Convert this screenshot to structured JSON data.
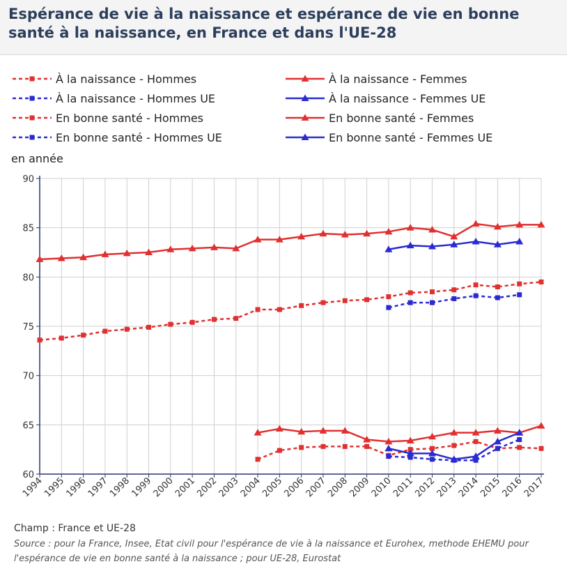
{
  "title": "Espérance de vie à la naissance et espérance de vie en bonne santé à la naissance, en France et dans l'UE-28",
  "unit_label": "en année",
  "footer": {
    "champ": "Champ : France et UE-28",
    "source": "Source : pour la France, Insee, Etat civil pour l'espérance de vie à la naissance et Eurohex, methode EHEMU pour l'espérance de vie en bonne santé à la naissance ; pour UE-28, Eurostat"
  },
  "chart_data": {
    "type": "line",
    "ylim": [
      60,
      90
    ],
    "yticks": [
      60,
      65,
      70,
      75,
      80,
      85,
      90
    ],
    "grid": true,
    "legend_position": "top",
    "x": [
      "1994",
      "1995",
      "1996",
      "1997",
      "1998",
      "1999",
      "2000",
      "2001",
      "2002",
      "2003",
      "2004",
      "2005",
      "2006",
      "2007",
      "2008",
      "2009",
      "2010",
      "2011",
      "2012",
      "2013",
      "2014",
      "2015",
      "2016",
      "2017"
    ],
    "series": [
      {
        "name": "À la naissance - Hommes",
        "color": "#e03030",
        "dash": true,
        "marker": "square",
        "values": [
          73.6,
          73.8,
          74.1,
          74.5,
          74.7,
          74.9,
          75.2,
          75.4,
          75.7,
          75.8,
          76.7,
          76.7,
          77.1,
          77.4,
          77.6,
          77.7,
          78.0,
          78.4,
          78.5,
          78.7,
          79.2,
          79.0,
          79.3,
          79.5
        ]
      },
      {
        "name": "À la naissance - Femmes",
        "color": "#e03030",
        "dash": false,
        "marker": "triangle",
        "values": [
          81.8,
          81.9,
          82.0,
          82.3,
          82.4,
          82.5,
          82.8,
          82.9,
          83.0,
          82.9,
          83.8,
          83.8,
          84.1,
          84.4,
          84.3,
          84.4,
          84.6,
          85.0,
          84.8,
          84.1,
          85.4,
          85.1,
          85.3,
          85.3
        ]
      },
      {
        "name": "À la naissance - Hommes UE",
        "color": "#2a2ad0",
        "dash": true,
        "marker": "square",
        "values": [
          null,
          null,
          null,
          null,
          null,
          null,
          null,
          null,
          null,
          null,
          null,
          null,
          null,
          null,
          null,
          null,
          76.9,
          77.4,
          77.4,
          77.8,
          78.1,
          77.9,
          78.2,
          null
        ]
      },
      {
        "name": "À la naissance - Femmes UE",
        "color": "#2a2ad0",
        "dash": false,
        "marker": "triangle",
        "values": [
          null,
          null,
          null,
          null,
          null,
          null,
          null,
          null,
          null,
          null,
          null,
          null,
          null,
          null,
          null,
          null,
          82.8,
          83.2,
          83.1,
          83.3,
          83.6,
          83.3,
          83.6,
          null
        ]
      },
      {
        "name": "En bonne santé - Hommes",
        "color": "#e03030",
        "dash": true,
        "marker": "square",
        "values": [
          null,
          null,
          null,
          null,
          null,
          null,
          null,
          null,
          null,
          null,
          61.5,
          62.4,
          62.7,
          62.8,
          62.8,
          62.8,
          61.9,
          62.5,
          62.6,
          62.9,
          63.3,
          62.6,
          62.7,
          62.6
        ]
      },
      {
        "name": "En bonne santé - Femmes",
        "color": "#e03030",
        "dash": false,
        "marker": "triangle",
        "values": [
          null,
          null,
          null,
          null,
          null,
          null,
          null,
          null,
          null,
          null,
          64.2,
          64.6,
          64.3,
          64.4,
          64.4,
          63.5,
          63.3,
          63.4,
          63.8,
          64.2,
          64.2,
          64.4,
          64.2,
          64.9
        ]
      },
      {
        "name": "En bonne santé - Hommes UE",
        "color": "#2a2ad0",
        "dash": true,
        "marker": "square",
        "values": [
          null,
          null,
          null,
          null,
          null,
          null,
          null,
          null,
          null,
          null,
          null,
          null,
          null,
          null,
          null,
          null,
          61.8,
          61.7,
          61.5,
          61.4,
          61.4,
          62.6,
          63.5,
          null
        ]
      },
      {
        "name": "En bonne santé - Femmes UE",
        "color": "#2a2ad0",
        "dash": false,
        "marker": "triangle",
        "values": [
          null,
          null,
          null,
          null,
          null,
          null,
          null,
          null,
          null,
          null,
          null,
          null,
          null,
          null,
          null,
          null,
          62.6,
          62.1,
          62.1,
          61.5,
          61.8,
          63.3,
          64.2,
          null
        ]
      }
    ]
  }
}
